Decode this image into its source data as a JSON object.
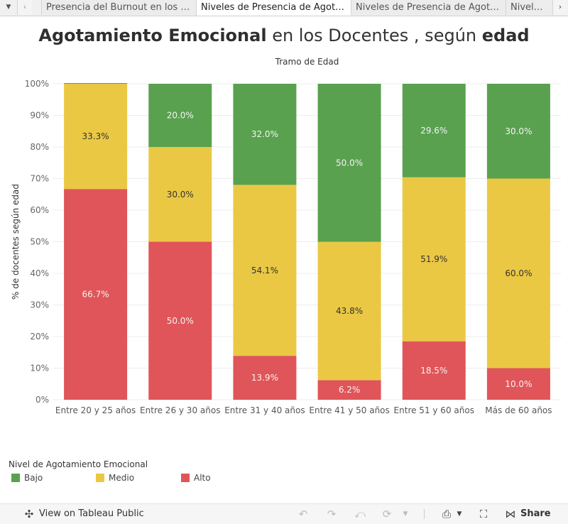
{
  "tabs": {
    "dropdown_icon": "chevron-down-icon",
    "items": [
      {
        "label": "Presencia del Burnout en los D...",
        "active": false
      },
      {
        "label": "Niveles de Presencia de Agota...",
        "active": true
      },
      {
        "label": "Niveles de Presencia de Agota...",
        "active": false
      },
      {
        "label": "Niveles d",
        "active": false
      }
    ]
  },
  "title": {
    "part1": "Agotamiento Emocional",
    "part2": " en los Docentes , según ",
    "part3": "edad"
  },
  "chart_data": {
    "type": "bar",
    "stacked": true,
    "top_axis_label": "Tramo de Edad",
    "ylabel": "% de docentes según edad",
    "xlabel": "",
    "ylim": [
      0,
      100
    ],
    "yticks": [
      "0%",
      "10%",
      "20%",
      "30%",
      "40%",
      "50%",
      "60%",
      "70%",
      "80%",
      "90%",
      "100%"
    ],
    "grid": true,
    "categories": [
      "Entre 20 y 25 años",
      "Entre 26 y 30 años",
      "Entre 31 y 40 años",
      "Entre 41 y 50 años",
      "Entre 51 y 60 años",
      "Más de 60 años"
    ],
    "series": [
      {
        "name": "Alto",
        "color": "#e05559",
        "values": [
          66.7,
          50.0,
          13.9,
          6.2,
          18.5,
          10.0
        ],
        "labels": [
          "66.7%",
          "50.0%",
          "13.9%",
          "6.2%",
          "18.5%",
          "10.0%"
        ]
      },
      {
        "name": "Medio",
        "color": "#eac844",
        "values": [
          33.3,
          30.0,
          54.1,
          43.8,
          51.9,
          60.0
        ],
        "labels": [
          "33.3%",
          "30.0%",
          "54.1%",
          "43.8%",
          "51.9%",
          "60.0%"
        ]
      },
      {
        "name": "Bajo",
        "color": "#59a14f",
        "values": [
          0,
          20.0,
          32.0,
          50.0,
          29.6,
          30.0
        ],
        "labels": [
          "",
          "20.0%",
          "32.0%",
          "50.0%",
          "29.6%",
          "30.0%"
        ]
      }
    ]
  },
  "legend": {
    "title": "Nivel de Agotamiento Emocional",
    "items": [
      {
        "label": "Bajo",
        "color": "#59a14f"
      },
      {
        "label": "Medio",
        "color": "#eac844"
      },
      {
        "label": "Alto",
        "color": "#e05559"
      }
    ]
  },
  "footer": {
    "view_label": "View on Tableau Public",
    "share_label": "Share"
  }
}
